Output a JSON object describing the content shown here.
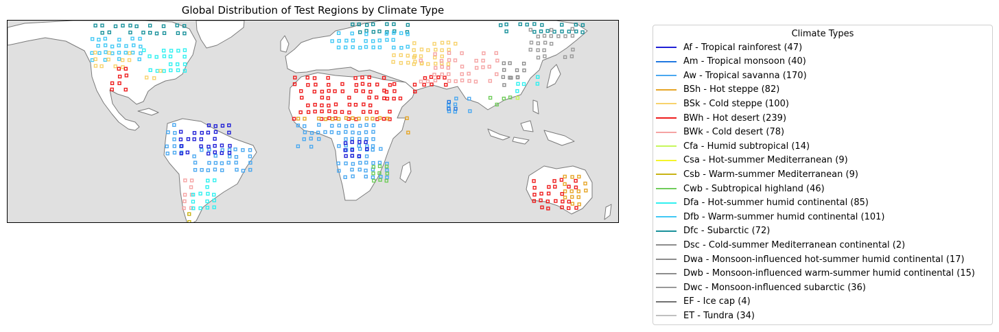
{
  "title": "Global Distribution of Test Regions by Climate Type",
  "colors": {
    "ocean": "#e0e0e0",
    "land": "#ffffff",
    "coast": "#7a7a7a"
  },
  "legend": {
    "title": "Climate Types",
    "placement": "outside-right",
    "items": [
      {
        "code": "Af",
        "label": "Af - Tropical rainforest (47)",
        "count": 47,
        "color": "#1f1fd6"
      },
      {
        "code": "Am",
        "label": "Am - Tropical monsoon (40)",
        "count": 40,
        "color": "#1f77e0"
      },
      {
        "code": "Aw",
        "label": "Aw - Tropical savanna (170)",
        "count": 170,
        "color": "#4aa8f0"
      },
      {
        "code": "BSh",
        "label": "BSh - Hot steppe (82)",
        "count": 82,
        "color": "#e6a526"
      },
      {
        "code": "BSk",
        "label": "BSk - Cold steppe (100)",
        "count": 100,
        "color": "#f7d26b"
      },
      {
        "code": "BWh",
        "label": "BWh - Hot desert (239)",
        "count": 239,
        "color": "#ee1c1c"
      },
      {
        "code": "BWk",
        "label": "BWk - Cold desert (78)",
        "count": 78,
        "color": "#f5a3a3"
      },
      {
        "code": "Cfa",
        "label": "Cfa - Humid subtropical (14)",
        "count": 14,
        "color": "#c6f75a"
      },
      {
        "code": "Csa",
        "label": "Csa - Hot-summer Mediterranean (9)",
        "count": 9,
        "color": "#f5f52a"
      },
      {
        "code": "Csb",
        "label": "Csb - Warm-summer Mediterranean (9)",
        "count": 9,
        "color": "#c8b314"
      },
      {
        "code": "Cwb",
        "label": "Cwb - Subtropical highland (46)",
        "count": 46,
        "color": "#6fcc5a"
      },
      {
        "code": "Dfa",
        "label": "Dfa - Hot-summer humid continental (85)",
        "count": 85,
        "color": "#2ff0f0"
      },
      {
        "code": "Dfb",
        "label": "Dfb - Warm-summer humid continental (101)",
        "count": 101,
        "color": "#40c8f5"
      },
      {
        "code": "Dfc",
        "label": "Dfc - Subarctic (72)",
        "count": 72,
        "color": "#17909a"
      },
      {
        "code": "Dsc",
        "label": "Dsc - Cold-summer Mediterranean continental (2)",
        "count": 2,
        "color": "#8c8c8c"
      },
      {
        "code": "Dwa",
        "label": "Dwa - Monsoon-influenced hot-summer humid continental (17)",
        "count": 17,
        "color": "#8c8c8c"
      },
      {
        "code": "Dwb",
        "label": "Dwb - Monsoon-influenced warm-summer humid continental (15)",
        "count": 15,
        "color": "#8c8c8c"
      },
      {
        "code": "Dwc",
        "label": "Dwc - Monsoon-influenced subarctic (36)",
        "count": 36,
        "color": "#999999"
      },
      {
        "code": "EF",
        "label": "EF - Ice cap (4)",
        "count": 4,
        "color": "#707070"
      },
      {
        "code": "ET",
        "label": "ET - Tundra (34)",
        "count": 34,
        "color": "#c0c0c0"
      }
    ]
  }
}
